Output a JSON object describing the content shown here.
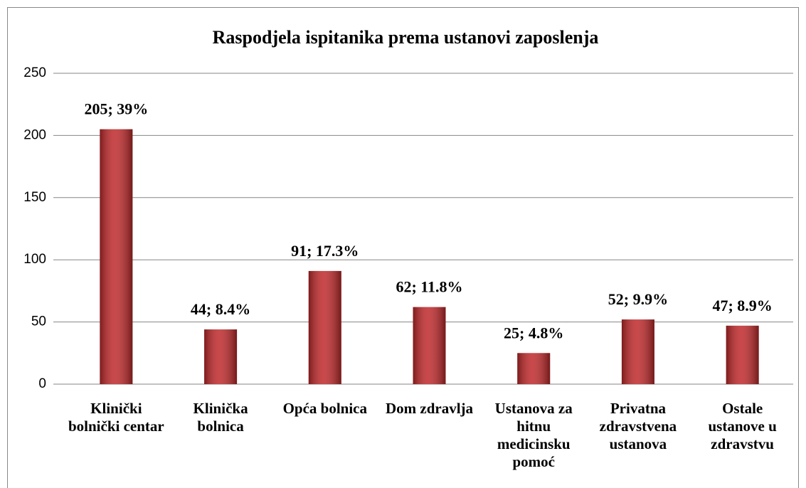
{
  "chart_data": {
    "type": "bar",
    "title": "Raspodjela ispitanika prema ustanovi zaposlenja",
    "categories": [
      "Klinički bolnički centar",
      "Klinička bolnica",
      "Opća bolnica",
      "Dom zdravlja",
      "Ustanova za hitnu medicinsku pomoć",
      "Privatna zdravstvena ustanova",
      "Ostale ustanove u zdravstvu"
    ],
    "values": [
      205,
      44,
      91,
      62,
      25,
      52,
      47
    ],
    "value_labels": [
      "205; 39%",
      "44; 8.4%",
      "91; 17.3%",
      "62; 11.8%",
      "25; 4.8%",
      "52; 9.9%",
      "47; 8.9%"
    ],
    "color": "#c0282a",
    "ylim": [
      0,
      250
    ],
    "yticks": [
      0,
      50,
      100,
      150,
      200,
      250
    ],
    "grid": true
  }
}
